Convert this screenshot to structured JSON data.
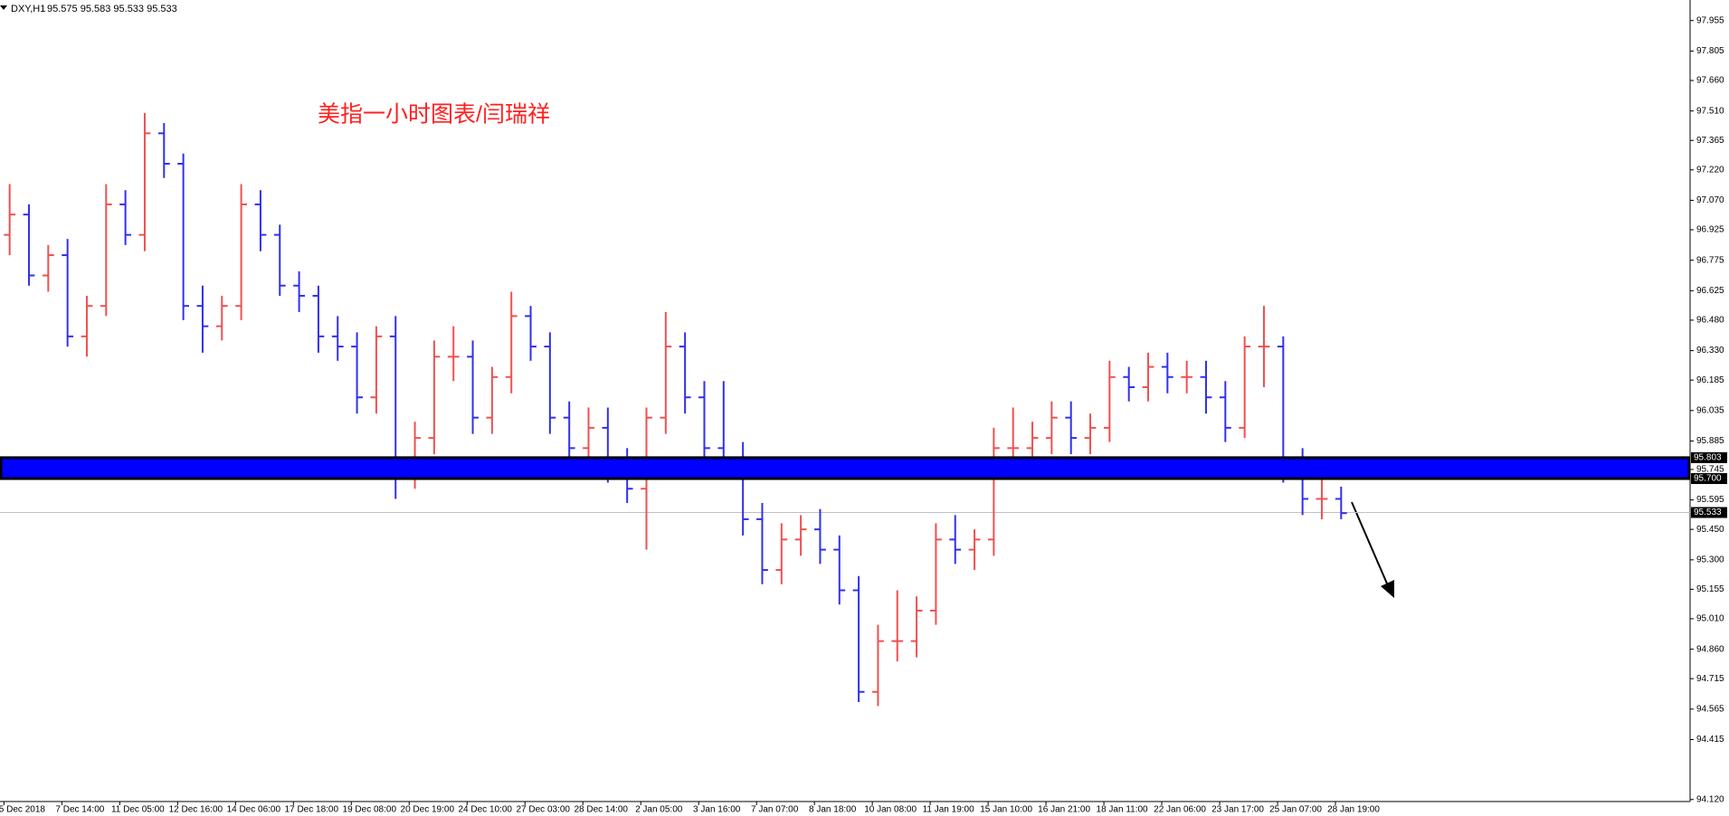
{
  "header": {
    "symbol": "DXY,H1",
    "ohlc": "95.575 95.583 95.533 95.533"
  },
  "chart_data": {
    "type": "ohlc",
    "annotation": "美指一小时图表/闫瑞祥",
    "categories": [
      "5 Dec 2018",
      "7 Dec 14:00",
      "11 Dec 05:00",
      "12 Dec 16:00",
      "14 Dec 06:00",
      "17 Dec 18:00",
      "19 Dec 08:00",
      "20 Dec 19:00",
      "24 Dec 10:00",
      "27 Dec 03:00",
      "28 Dec 14:00",
      "2 Jan 05:00",
      "3 Jan 16:00",
      "7 Jan 07:00",
      "8 Jan 18:00",
      "10 Jan 08:00",
      "11 Jan 19:00",
      "15 Jan 10:00",
      "16 Jan 21:00",
      "18 Jan 11:00",
      "22 Jan 06:00",
      "23 Jan 17:00",
      "25 Jan 07:00",
      "28 Jan 19:00"
    ],
    "open": [
      96.9,
      97.0,
      96.7,
      96.8,
      96.4,
      96.55,
      97.05,
      96.9,
      97.4,
      97.25,
      96.55,
      96.45,
      96.55,
      97.05,
      96.9,
      96.65,
      96.6,
      96.4,
      96.35,
      96.1,
      96.4,
      95.75,
      95.9,
      96.3,
      96.3,
      96.0,
      96.2,
      96.5,
      96.35,
      96.0,
      95.85,
      95.95,
      95.75,
      95.65,
      96.0,
      96.35,
      96.1,
      95.85,
      95.8,
      95.5,
      95.25,
      95.4,
      95.45,
      95.35,
      95.15,
      94.65,
      94.9,
      94.9,
      95.05,
      95.4,
      95.35,
      95.4,
      95.85,
      95.85,
      95.9,
      96.0,
      95.9,
      95.95,
      96.2,
      96.15,
      96.25,
      96.2,
      96.2,
      96.1,
      95.95,
      96.35,
      96.35,
      95.75,
      95.6,
      95.6
    ],
    "high": [
      97.15,
      97.05,
      96.85,
      96.88,
      96.6,
      97.15,
      97.12,
      97.5,
      97.45,
      97.3,
      96.65,
      96.6,
      97.15,
      97.12,
      96.95,
      96.72,
      96.65,
      96.5,
      96.42,
      96.45,
      96.5,
      95.98,
      96.38,
      96.45,
      96.38,
      96.25,
      96.62,
      96.55,
      96.42,
      96.08,
      96.05,
      96.05,
      95.85,
      96.05,
      96.52,
      96.42,
      96.18,
      96.18,
      95.88,
      95.58,
      95.48,
      95.52,
      95.55,
      95.42,
      95.22,
      94.98,
      95.15,
      95.12,
      95.48,
      95.52,
      95.45,
      95.95,
      96.05,
      95.98,
      96.08,
      96.08,
      96.02,
      96.28,
      96.25,
      96.32,
      96.32,
      96.28,
      96.28,
      96.18,
      96.4,
      96.55,
      96.4,
      95.85,
      95.72,
      95.66
    ],
    "low": [
      96.8,
      96.65,
      96.62,
      96.35,
      96.3,
      96.5,
      96.85,
      96.82,
      97.18,
      96.48,
      96.32,
      96.38,
      96.48,
      96.82,
      96.6,
      96.52,
      96.32,
      96.28,
      96.02,
      96.02,
      95.6,
      95.65,
      95.82,
      96.18,
      95.92,
      95.92,
      96.12,
      96.28,
      95.92,
      95.78,
      95.78,
      95.68,
      95.58,
      95.35,
      95.92,
      96.02,
      95.78,
      95.72,
      95.42,
      95.18,
      95.18,
      95.32,
      95.28,
      95.08,
      94.6,
      94.58,
      94.8,
      94.82,
      94.98,
      95.28,
      95.25,
      95.32,
      95.72,
      95.78,
      95.82,
      95.82,
      95.82,
      95.88,
      96.08,
      96.08,
      96.12,
      96.12,
      96.02,
      95.88,
      95.9,
      96.15,
      95.68,
      95.52,
      95.5,
      95.5
    ],
    "close": [
      97.0,
      96.7,
      96.8,
      96.4,
      96.55,
      97.05,
      96.9,
      97.4,
      97.25,
      96.55,
      96.45,
      96.55,
      97.05,
      96.9,
      96.65,
      96.6,
      96.4,
      96.35,
      96.1,
      96.4,
      95.75,
      95.9,
      96.3,
      96.3,
      96.0,
      96.2,
      96.5,
      96.35,
      96.0,
      95.85,
      95.95,
      95.75,
      95.65,
      96.0,
      96.35,
      96.1,
      95.85,
      95.8,
      95.5,
      95.25,
      95.4,
      95.45,
      95.35,
      95.15,
      94.65,
      94.9,
      94.9,
      95.05,
      95.4,
      95.35,
      95.4,
      95.85,
      95.85,
      95.9,
      96.0,
      95.9,
      95.95,
      96.2,
      96.15,
      96.25,
      96.2,
      96.2,
      96.1,
      95.95,
      96.35,
      96.35,
      95.75,
      95.6,
      95.6,
      95.53
    ],
    "up_color": "#f05050",
    "down_color": "#3030f0",
    "ylim": [
      94.11,
      98.04
    ],
    "yticks": [
      97.955,
      97.805,
      {
        "value": 97.66,
        "label": "97.660"
      },
      {
        "value": 97.51,
        "label": "97.510"
      },
      97.365,
      {
        "value": 97.22,
        "label": "97.220"
      },
      {
        "value": 97.07,
        "label": "97.070"
      },
      96.925,
      96.775,
      96.625,
      {
        "value": 96.48,
        "label": "96.480"
      },
      {
        "value": 96.33,
        "label": "96.330"
      },
      96.185,
      96.035,
      95.885,
      95.745,
      95.595,
      {
        "value": 95.45,
        "label": "95.450"
      },
      {
        "value": 95.3,
        "label": "95.300"
      },
      95.155,
      {
        "value": 95.01,
        "label": "95.010"
      },
      {
        "value": 94.86,
        "label": "94.860"
      },
      94.715,
      94.565,
      94.415,
      {
        "value": 94.12,
        "label": "94.120"
      }
    ],
    "zone": {
      "high": 95.803,
      "low": {
        "value": 95.7,
        "label": "95.700"
      },
      "color": "#0000ff"
    },
    "bid": 95.533
  }
}
